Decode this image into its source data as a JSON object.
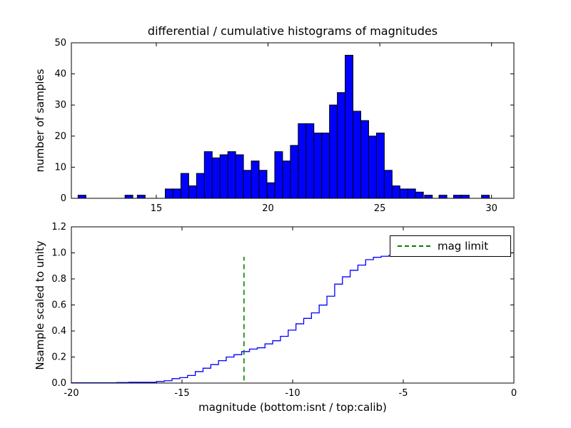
{
  "figure": {
    "background": "#ffffff",
    "frame_color": "#000000"
  },
  "chart_data": [
    {
      "type": "bar",
      "title": "differential / cumulative histograms of magnitudes",
      "ylabel": "number of samples",
      "xlim": [
        11.2,
        31.0
      ],
      "ylim": [
        0,
        50
      ],
      "xticks": [
        15,
        20,
        25,
        30
      ],
      "xtick_labels": [
        "15",
        "20",
        "25",
        "30"
      ],
      "yticks": [
        0,
        10,
        20,
        30,
        40,
        50
      ],
      "ytick_labels": [
        "0",
        "10",
        "20",
        "30",
        "40",
        "50"
      ],
      "grid": false,
      "bar_color": "#0000ff",
      "bar_edge_color": "#000000",
      "bin_width": 0.35,
      "bars": [
        {
          "x": 11.5,
          "h": 1
        },
        {
          "x": 13.6,
          "h": 1
        },
        {
          "x": 14.15,
          "h": 1
        },
        {
          "x": 15.4,
          "h": 3
        },
        {
          "x": 15.75,
          "h": 3
        },
        {
          "x": 16.1,
          "h": 8
        },
        {
          "x": 16.45,
          "h": 4
        },
        {
          "x": 16.8,
          "h": 8
        },
        {
          "x": 17.15,
          "h": 15
        },
        {
          "x": 17.5,
          "h": 13
        },
        {
          "x": 17.85,
          "h": 14
        },
        {
          "x": 18.2,
          "h": 15
        },
        {
          "x": 18.55,
          "h": 14
        },
        {
          "x": 18.9,
          "h": 9
        },
        {
          "x": 19.25,
          "h": 12
        },
        {
          "x": 19.6,
          "h": 9
        },
        {
          "x": 19.95,
          "h": 5
        },
        {
          "x": 20.3,
          "h": 15
        },
        {
          "x": 20.65,
          "h": 12
        },
        {
          "x": 21.0,
          "h": 17
        },
        {
          "x": 21.35,
          "h": 24
        },
        {
          "x": 21.7,
          "h": 24
        },
        {
          "x": 22.05,
          "h": 21
        },
        {
          "x": 22.4,
          "h": 21
        },
        {
          "x": 22.75,
          "h": 30
        },
        {
          "x": 23.1,
          "h": 34
        },
        {
          "x": 23.45,
          "h": 46
        },
        {
          "x": 23.8,
          "h": 28
        },
        {
          "x": 24.15,
          "h": 25
        },
        {
          "x": 24.5,
          "h": 20
        },
        {
          "x": 24.85,
          "h": 21
        },
        {
          "x": 25.2,
          "h": 9
        },
        {
          "x": 25.55,
          "h": 4
        },
        {
          "x": 25.9,
          "h": 3
        },
        {
          "x": 26.25,
          "h": 3
        },
        {
          "x": 26.6,
          "h": 2
        },
        {
          "x": 27.0,
          "h": 1
        },
        {
          "x": 27.65,
          "h": 1
        },
        {
          "x": 28.3,
          "h": 1
        },
        {
          "x": 28.65,
          "h": 1
        },
        {
          "x": 29.55,
          "h": 1
        }
      ]
    },
    {
      "type": "line",
      "line_style": "step-cumulative",
      "ylabel": "Nsample scaled to unity",
      "xlabel": "magnitude (bottom:isnt / top:calib)",
      "xlim": [
        -20,
        0
      ],
      "ylim": [
        0,
        1.2
      ],
      "xticks": [
        -20,
        -15,
        -10,
        -5,
        0
      ],
      "xtick_labels": [
        "-20",
        "-15",
        "-10",
        "-5",
        "0"
      ],
      "yticks": [
        0,
        0.2,
        0.4,
        0.6,
        0.8,
        1.0,
        1.2
      ],
      "ytick_labels": [
        "0.0",
        "0.2",
        "0.4",
        "0.6",
        "0.8",
        "1.0",
        "1.2"
      ],
      "grid": false,
      "line_color": "#0000ff",
      "legend": {
        "label": "mag limit",
        "line_color": "#008000",
        "line_style": "dashed",
        "position": "upper right"
      },
      "vline": {
        "x": -12.2,
        "y0": 0.02,
        "y1": 0.97,
        "color": "#008000",
        "style": "dashed"
      },
      "steps": [
        [
          -20.05,
          0.002
        ],
        [
          -17.95,
          0.004
        ],
        [
          -17.4,
          0.006
        ],
        [
          -16.15,
          0.012
        ],
        [
          -15.8,
          0.018
        ],
        [
          -15.45,
          0.034
        ],
        [
          -15.1,
          0.042
        ],
        [
          -14.75,
          0.058
        ],
        [
          -14.4,
          0.088
        ],
        [
          -14.05,
          0.114
        ],
        [
          -13.7,
          0.142
        ],
        [
          -13.35,
          0.172
        ],
        [
          -13.0,
          0.2
        ],
        [
          -12.65,
          0.218
        ],
        [
          -12.3,
          0.242
        ],
        [
          -11.95,
          0.261
        ],
        [
          -11.6,
          0.271
        ],
        [
          -11.25,
          0.301
        ],
        [
          -10.9,
          0.325
        ],
        [
          -10.55,
          0.359
        ],
        [
          -10.2,
          0.407
        ],
        [
          -9.85,
          0.455
        ],
        [
          -9.5,
          0.497
        ],
        [
          -9.15,
          0.539
        ],
        [
          -8.8,
          0.599
        ],
        [
          -8.45,
          0.667
        ],
        [
          -8.1,
          0.76
        ],
        [
          -7.75,
          0.816
        ],
        [
          -7.4,
          0.866
        ],
        [
          -7.05,
          0.906
        ],
        [
          -6.7,
          0.948
        ],
        [
          -6.35,
          0.966
        ],
        [
          -6.0,
          0.974
        ],
        [
          -5.65,
          0.98
        ],
        [
          -5.3,
          0.986
        ],
        [
          -4.95,
          0.99
        ],
        [
          -4.55,
          0.992
        ],
        [
          -3.9,
          0.994
        ],
        [
          -3.25,
          0.996
        ],
        [
          -2.9,
          0.998
        ],
        [
          -2.0,
          1.0
        ]
      ]
    }
  ]
}
